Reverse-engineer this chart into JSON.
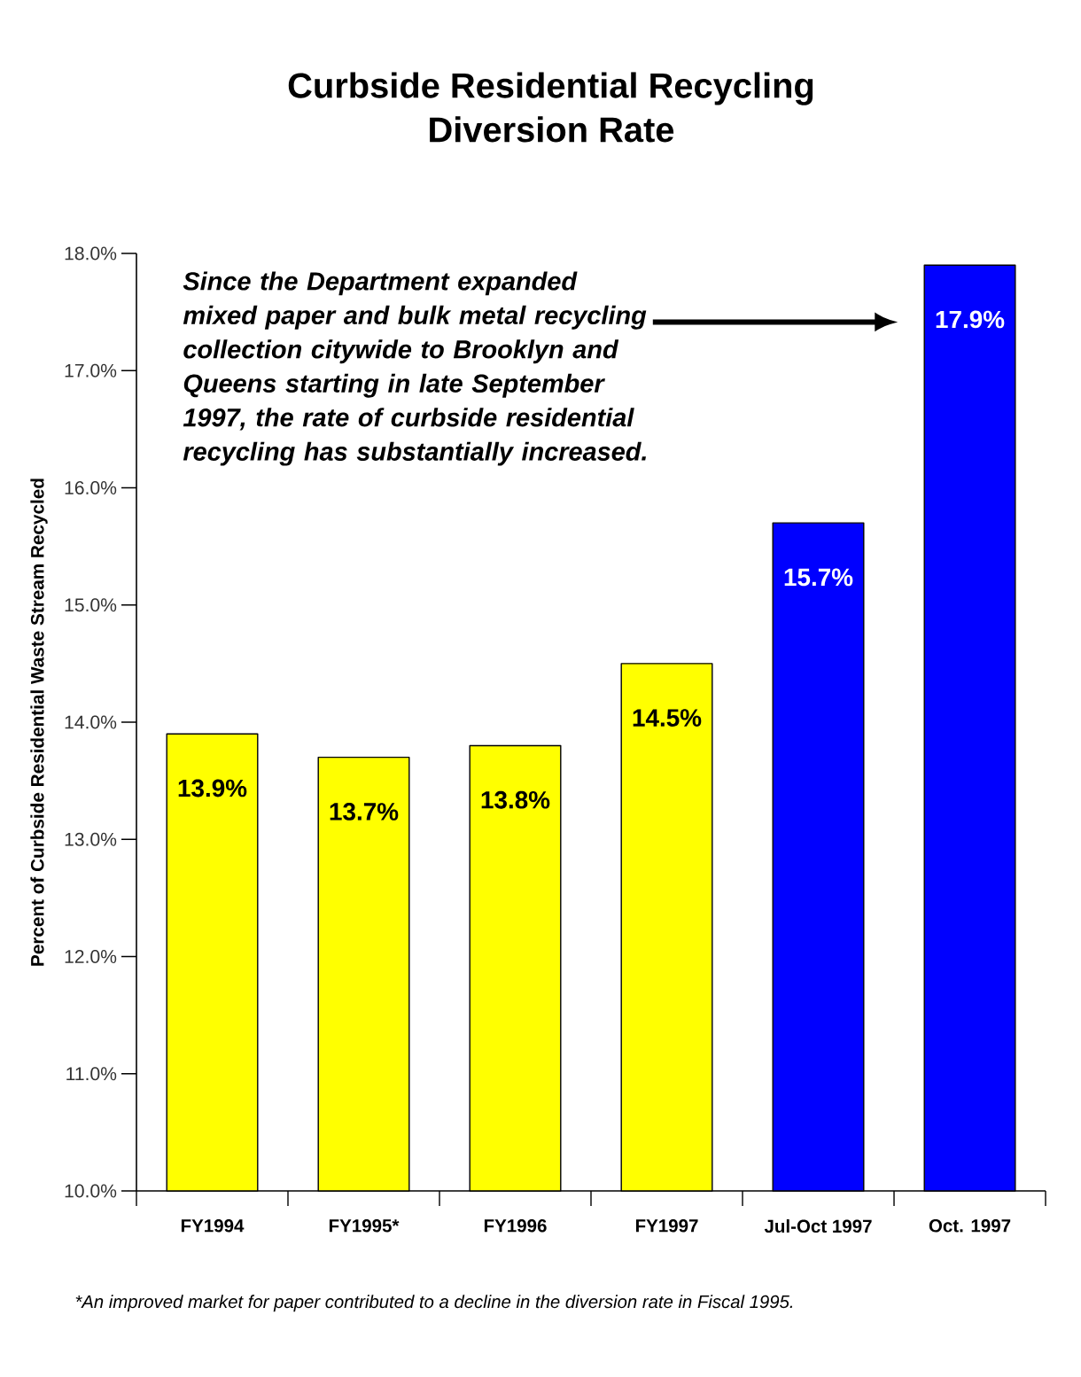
{
  "chart_data": {
    "type": "bar",
    "title": "Curbside Residential Recycling Diversion Rate",
    "ylabel": "Percent of Curbside Residential Waste Stream Recycled",
    "categories": [
      "FY1994",
      "FY1995*",
      "FY1996",
      "FY1997",
      "Jul-Oct 1997",
      "Oct. 1997"
    ],
    "values": [
      13.9,
      13.7,
      13.8,
      14.5,
      15.7,
      17.9
    ],
    "colors": [
      "#ffff00",
      "#ffff00",
      "#ffff00",
      "#ffff00",
      "#0000ff",
      "#0000ff"
    ],
    "value_labels": [
      "13.9%",
      "13.7%",
      "13.8%",
      "14.5%",
      "15.7%",
      "17.9%"
    ],
    "ylim": [
      10,
      18
    ],
    "yticks": [
      {
        "value": 10,
        "label": "10.0%"
      },
      {
        "value": 11,
        "label": "11.0%"
      },
      {
        "value": 12,
        "label": "12.0%"
      },
      {
        "value": 13,
        "label": "13.0%"
      },
      {
        "value": 14,
        "label": "14.0%"
      },
      {
        "value": 15,
        "label": "15.0%"
      },
      {
        "value": 16,
        "label": "16.0%"
      },
      {
        "value": 17,
        "label": "17.0%"
      },
      {
        "value": 18,
        "label": "18.0%"
      }
    ],
    "annotations": [
      "Since the Department expanded mixed paper and bulk metal recycling collection citywide to Brooklyn and Queens starting in late September 1997, the rate of curbside residential recycling has substantially increased.",
      "*An improved market for paper contributed to a decline in the diversion rate in Fiscal 1995."
    ]
  }
}
